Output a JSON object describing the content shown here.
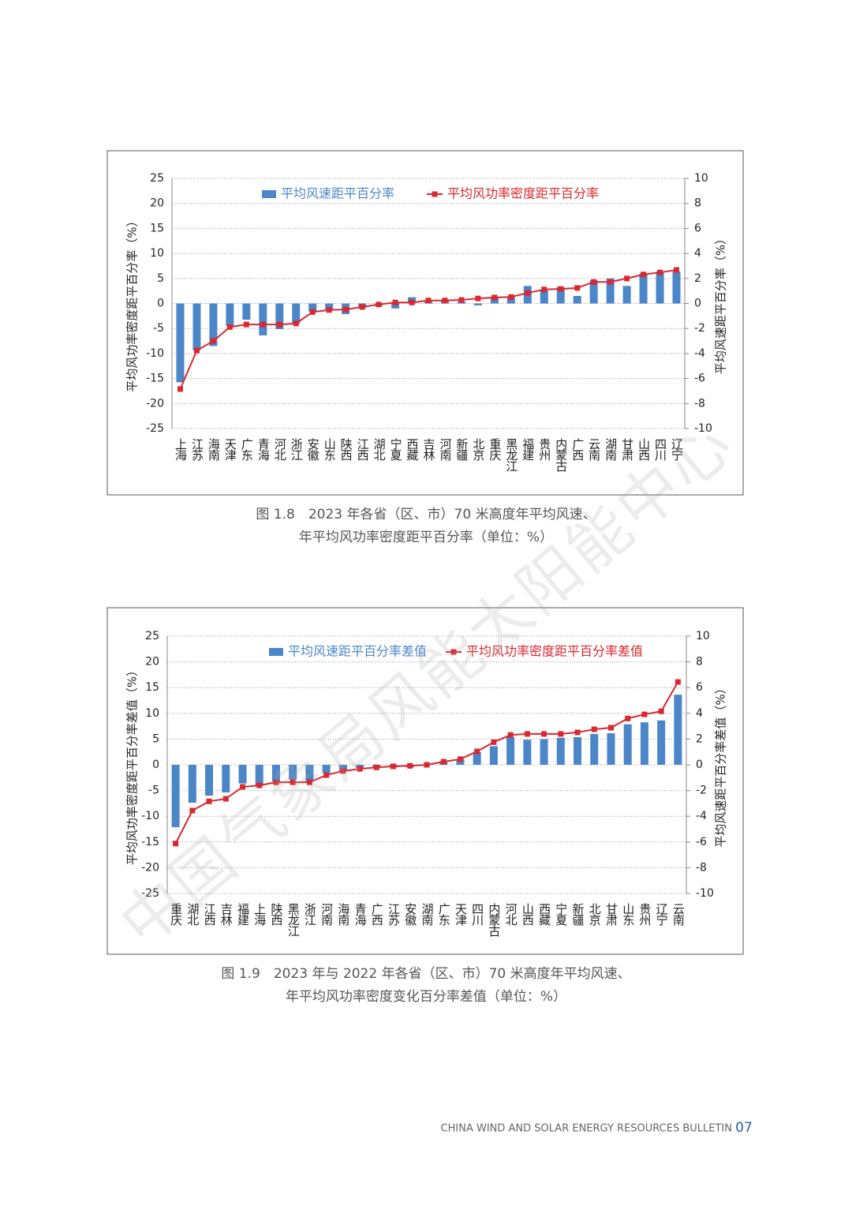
{
  "chart_data": [
    {
      "type": "combo",
      "caption": [
        "图 1.8　2023 年各省（区、市）70 米高度年平均风速、",
        "年平均风功率密度距平百分率（单位：%）"
      ],
      "ylabel": "平均风功率密度距平百分率（%）",
      "y2label": "平均风速距平百分率（%）",
      "categories": [
        "上海",
        "江苏",
        "海南",
        "天津",
        "广东",
        "青海",
        "河北",
        "浙江",
        "安徽",
        "山东",
        "陕西",
        "江西",
        "湖北",
        "宁夏",
        "西藏",
        "吉林",
        "河南",
        "新疆",
        "北京",
        "重庆",
        "黑龙江",
        "福建",
        "贵州",
        "内蒙古",
        "广西",
        "云南",
        "湖南",
        "甘肃",
        "山西",
        "四川",
        "辽宁"
      ],
      "series": [
        {
          "name": "平均风速距平百分率",
          "type": "bar",
          "axis": "y2",
          "color": "#4a86c8",
          "values": [
            -6.3,
            -3.75,
            -3.4,
            -1.8,
            -1.3,
            -2.55,
            -2.05,
            -1.6,
            -0.65,
            -0.5,
            -0.85,
            -0.35,
            -0.2,
            -0.4,
            0.5,
            0.15,
            0.2,
            0.15,
            -0.15,
            0.55,
            0.5,
            1.4,
            1.05,
            1.3,
            0.6,
            1.85,
            2.0,
            1.4,
            2.4,
            2.55,
            2.55
          ]
        },
        {
          "name": "平均风功率密度距平百分率",
          "type": "line",
          "color": "#d9282f",
          "values": [
            -17.1,
            -9.4,
            -7.5,
            -4.7,
            -4.2,
            -4.2,
            -4.2,
            -4.0,
            -1.7,
            -1.3,
            -1.2,
            -0.7,
            -0.2,
            0.2,
            0.2,
            0.6,
            0.6,
            0.7,
            1.0,
            1.2,
            1.3,
            2.1,
            2.8,
            2.9,
            3.1,
            4.3,
            4.3,
            5.0,
            5.8,
            6.2,
            6.7
          ]
        }
      ],
      "ylim": [
        -25,
        25
      ],
      "yticks": [
        -25,
        -20,
        -15,
        -10,
        -5,
        0,
        5,
        10,
        15,
        20,
        25
      ],
      "y2lim": [
        -10,
        10
      ],
      "y2ticks": [
        -10,
        -8,
        -6,
        -4,
        -2,
        0,
        2,
        4,
        6,
        8,
        10
      ],
      "grid": true
    },
    {
      "type": "combo",
      "caption": [
        "图 1.9　2023 年与 2022 年各省（区、市）70 米高度年平均风速、",
        "年平均风功率密度变化百分率差值（单位：%）"
      ],
      "ylabel": "平均风功率密度距平百分率差值（%）",
      "y2label": "平均风速距平百分率差值（%）",
      "categories": [
        "重庆",
        "湖北",
        "江西",
        "吉林",
        "福建",
        "上海",
        "陕西",
        "黑龙江",
        "浙江",
        "河南",
        "海南",
        "青海",
        "广西",
        "江苏",
        "安徽",
        "湖南",
        "广东",
        "天津",
        "四川",
        "内蒙古",
        "河北",
        "山西",
        "西藏",
        "宁夏",
        "新疆",
        "北京",
        "甘肃",
        "山东",
        "贵州",
        "辽宁",
        "云南"
      ],
      "series": [
        {
          "name": "平均风速距平百分率差值",
          "type": "bar",
          "axis": "y2",
          "color": "#4a86c8",
          "values": [
            -4.85,
            -2.95,
            -2.4,
            -2.15,
            -1.45,
            -1.65,
            -1.3,
            -1.15,
            -1.3,
            -0.65,
            -0.5,
            -0.25,
            -0.2,
            -0.2,
            -0.2,
            0.05,
            0.25,
            0.45,
            1.0,
            1.45,
            2.15,
            1.95,
            2.0,
            2.1,
            2.15,
            2.4,
            2.45,
            3.15,
            3.3,
            3.45,
            5.45
          ]
        },
        {
          "name": "平均风功率密度距平百分率差值",
          "type": "line",
          "color": "#d9282f",
          "values": [
            -15.3,
            -8.9,
            -7.1,
            -6.6,
            -4.3,
            -4.0,
            -3.4,
            -3.4,
            -3.4,
            -2.0,
            -1.2,
            -0.8,
            -0.5,
            -0.3,
            -0.2,
            0.0,
            0.6,
            1.1,
            2.6,
            4.4,
            5.8,
            6.0,
            6.0,
            6.0,
            6.3,
            6.9,
            7.2,
            9.0,
            9.8,
            10.4,
            16.1
          ]
        }
      ],
      "ylim": [
        -25,
        25
      ],
      "yticks": [
        -25,
        -20,
        -15,
        -10,
        -5,
        0,
        5,
        10,
        15,
        20,
        25
      ],
      "y2lim": [
        -10,
        10
      ],
      "y2ticks": [
        -10,
        -8,
        -6,
        -4,
        -2,
        0,
        2,
        4,
        6,
        8,
        10
      ],
      "grid": true
    }
  ],
  "watermark": "中国气象局风能太阳能中心",
  "footer": {
    "text": "CHINA WIND AND SOLAR ENERGY RESOURCES BULLETIN",
    "page": "07"
  }
}
